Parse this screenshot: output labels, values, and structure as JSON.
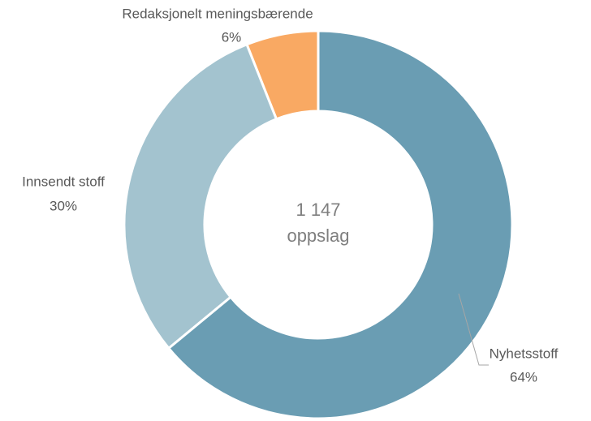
{
  "chart_data": {
    "type": "donut",
    "categories": [
      "Nyhetsstoff",
      "Innsendt stoff",
      "Redaksjonelt meningsbærende"
    ],
    "values": [
      64,
      30,
      6
    ],
    "value_labels": [
      "64%",
      "30%",
      "6%"
    ],
    "colors": [
      "#6a9db3",
      "#a3c3cf",
      "#f9a963"
    ],
    "center_text": "1 147",
    "center_subtext": "oppslag"
  }
}
